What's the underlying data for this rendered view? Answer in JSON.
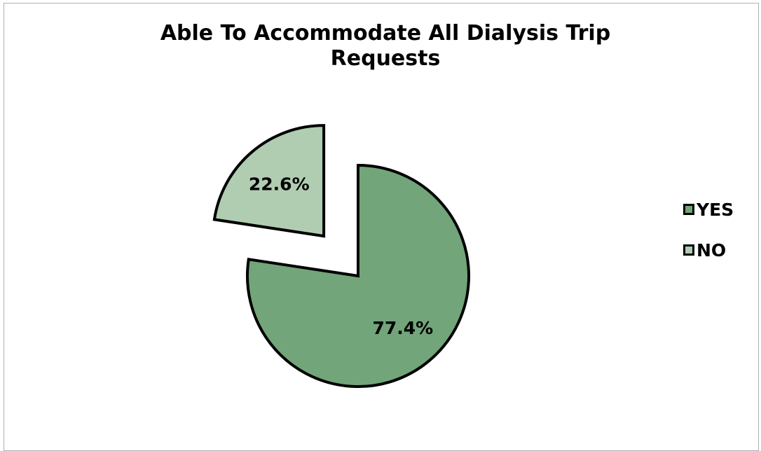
{
  "chart_data": {
    "type": "pie",
    "title": "Able To Accommodate All Dialysis Trip Requests",
    "categories": [
      "YES",
      "NO"
    ],
    "values": [
      77.4,
      22.6
    ],
    "data_labels": [
      "77.4%",
      "22.6%"
    ],
    "colors": [
      "#72a57a",
      "#b0cdb1"
    ],
    "exploded": [
      "NO"
    ],
    "legend_position": "right"
  }
}
